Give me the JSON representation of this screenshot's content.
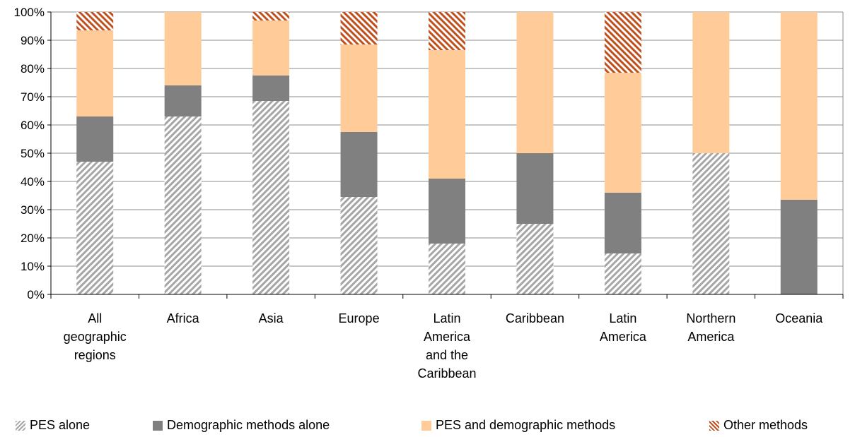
{
  "chart_data": {
    "type": "bar",
    "stacked": true,
    "title": "",
    "xlabel": "",
    "ylabel": "",
    "ylim": [
      0,
      100
    ],
    "y_ticks": [
      "0%",
      "10%",
      "20%",
      "30%",
      "40%",
      "50%",
      "60%",
      "70%",
      "80%",
      "90%",
      "100%"
    ],
    "grid": true,
    "legend_position": "bottom",
    "categories": [
      [
        "All",
        "geographic",
        "regions"
      ],
      [
        "Africa"
      ],
      [
        "Asia"
      ],
      [
        "Europe"
      ],
      [
        "Latin",
        "America",
        "and the",
        "Caribbean"
      ],
      [
        "Caribbean"
      ],
      [
        "Latin",
        "America"
      ],
      [
        "Northern",
        "America"
      ],
      [
        "Oceania"
      ]
    ],
    "series": [
      {
        "name": "PES alone",
        "color": "#A6A6A6",
        "pattern": "gray-diagonal-stripes",
        "values": [
          47,
          63,
          68.5,
          34.5,
          18,
          25,
          14.5,
          50,
          0
        ]
      },
      {
        "name": "Demographic methods alone",
        "color": "#808080",
        "pattern": "solid",
        "values": [
          16,
          11,
          9,
          23,
          23,
          25,
          21.5,
          0,
          33.5
        ]
      },
      {
        "name": "PES and demographic methods",
        "color": "#FFCC99",
        "pattern": "solid",
        "values": [
          30.5,
          26,
          19.5,
          31,
          45.5,
          50,
          42.5,
          50,
          66.5
        ]
      },
      {
        "name": "Other methods",
        "color": "#C0501E",
        "pattern": "orange-diagonal-stripes",
        "values": [
          6.5,
          0,
          3,
          11.5,
          13.5,
          0,
          21.5,
          0,
          0
        ]
      }
    ]
  }
}
